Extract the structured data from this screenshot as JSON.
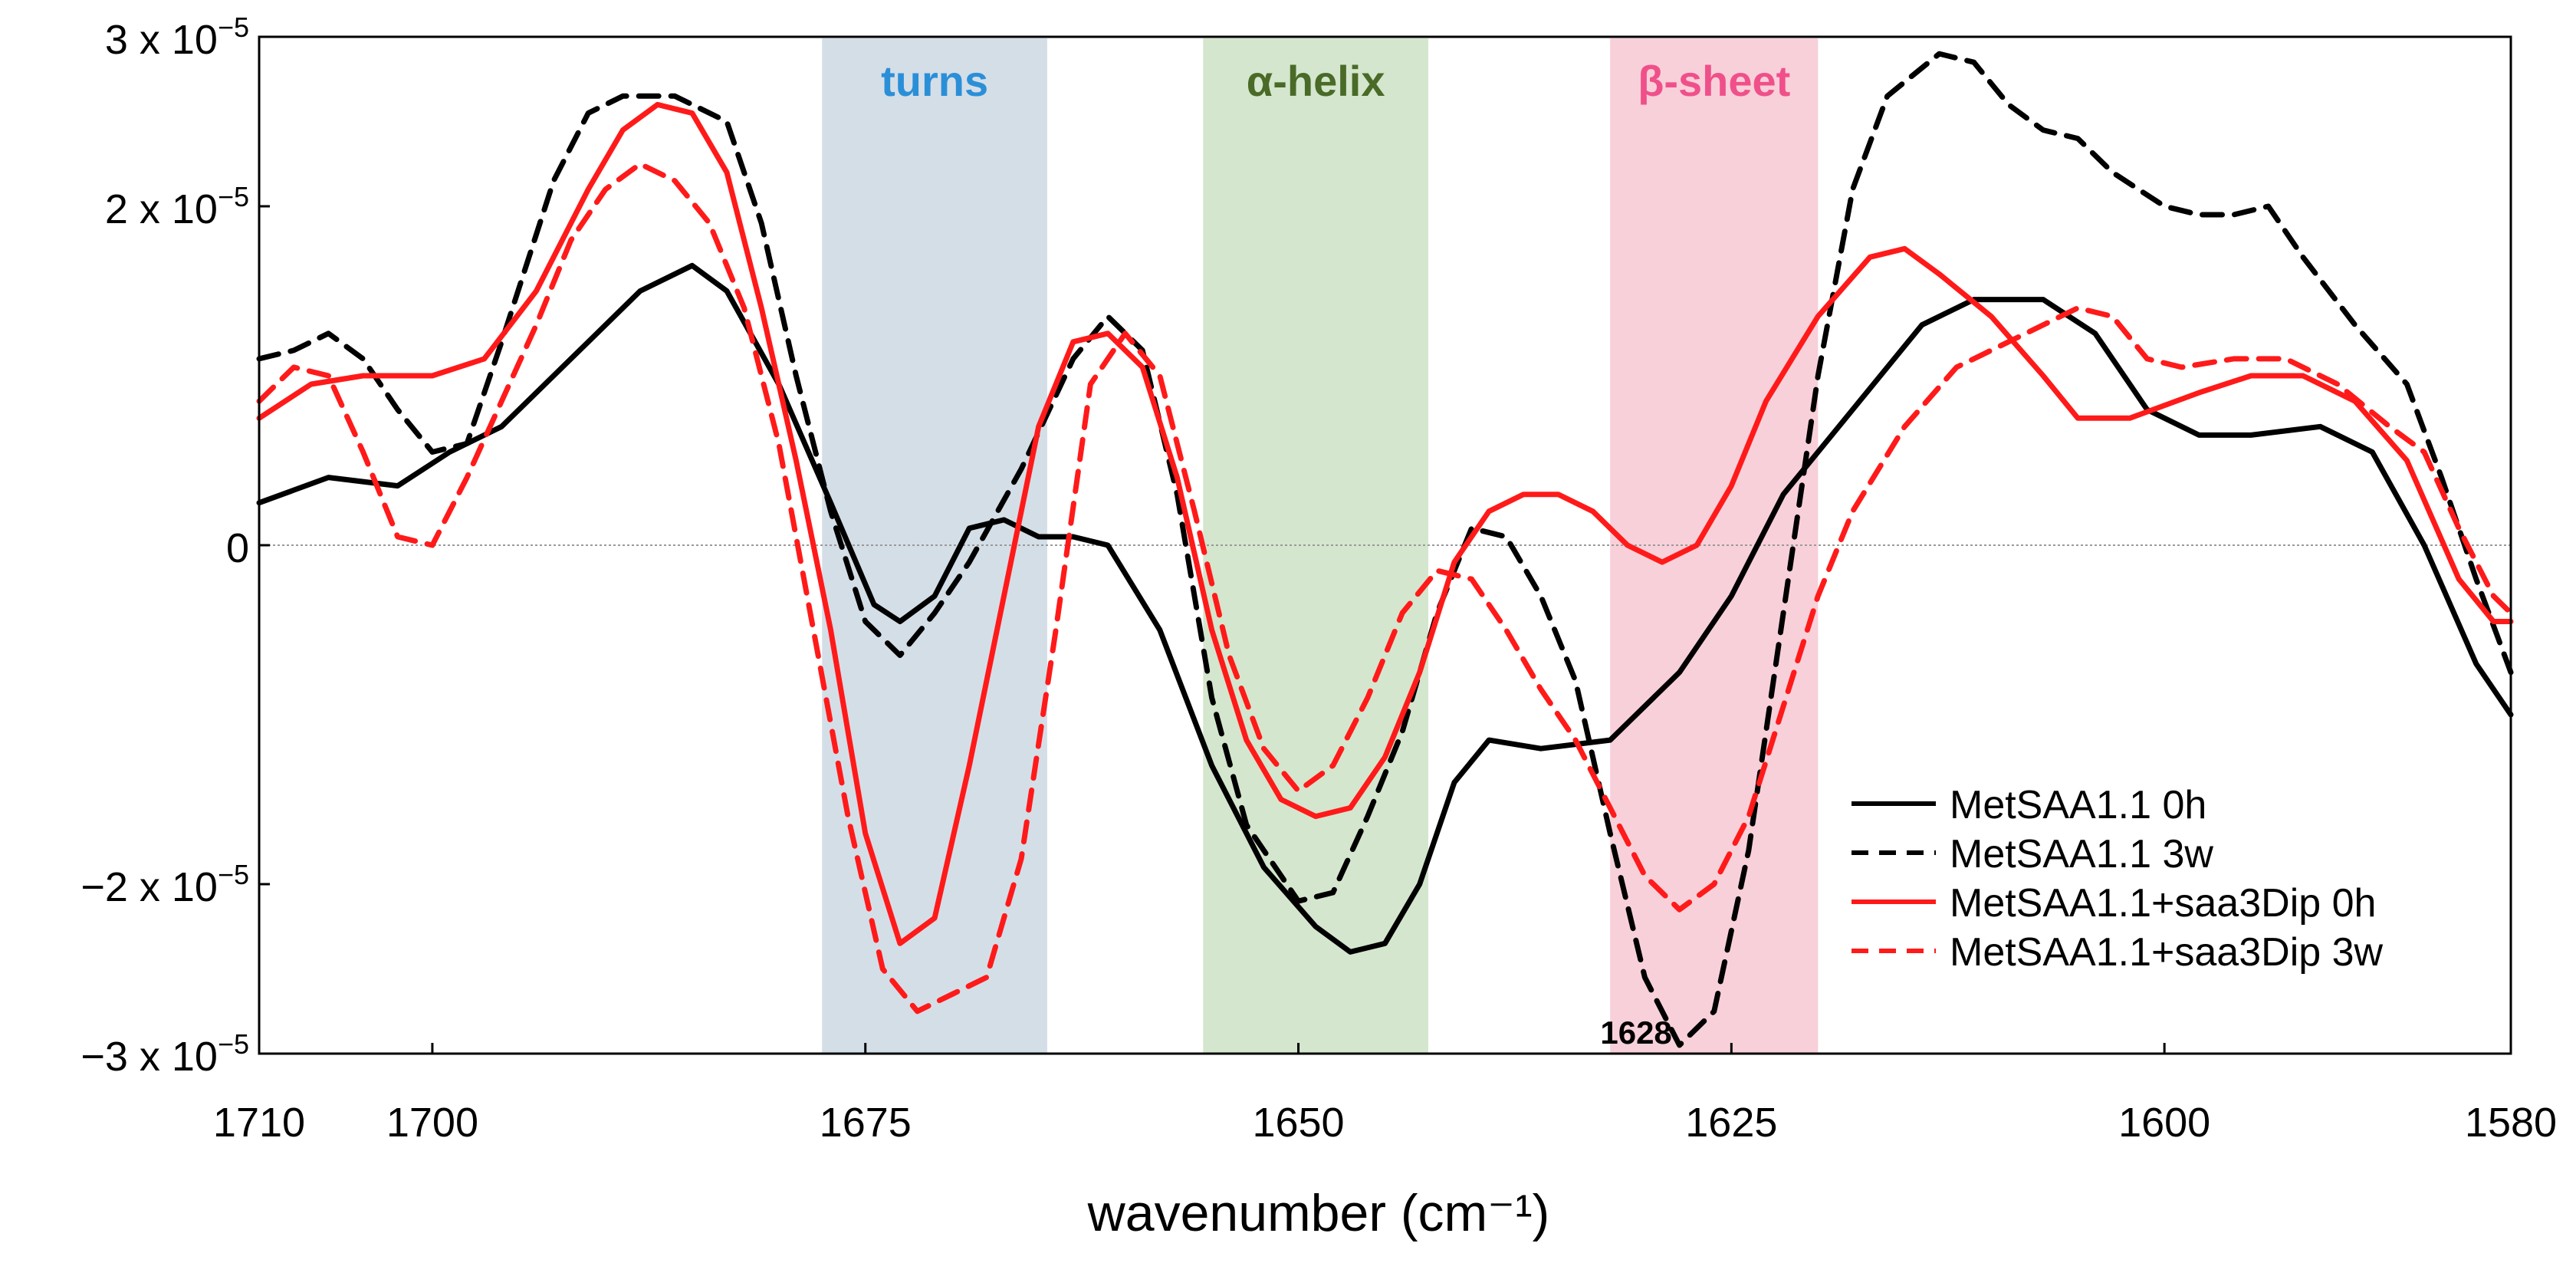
{
  "chart_data": {
    "type": "line",
    "xlabel": "wavenumber (cm⁻¹)",
    "ylabel": "",
    "xlim": [
      1710,
      1580
    ],
    "xaxis_reversed": true,
    "ylim": [
      -3e-05,
      3e-05
    ],
    "x_ticks": [
      1710,
      1700,
      1675,
      1650,
      1625,
      1600,
      1580
    ],
    "x_tick_labels": [
      "1710",
      "1700",
      "1675",
      "1650",
      "1625",
      "1600",
      "1580"
    ],
    "y_ticks": [
      3e-05,
      2e-05,
      0,
      -2e-05,
      -3e-05
    ],
    "y_tick_labels": [
      {
        "mant": "3 x 10",
        "exp": "−5"
      },
      {
        "mant": "2 x 10",
        "exp": "−5"
      },
      {
        "mant": "0",
        "exp": ""
      },
      {
        "mant": "−2 x 10",
        "exp": "−5"
      },
      {
        "mant": "−3 x 10",
        "exp": "−5"
      }
    ],
    "grid": false,
    "zero_line": true,
    "legend_position": "bottom-right",
    "bands": [
      {
        "label": "turns",
        "from": 1677.5,
        "to": 1664.5,
        "fill": "#d4dee7",
        "label_color": "#2b8fd8"
      },
      {
        "label": "α-helix",
        "from": 1655.5,
        "to": 1642.5,
        "fill": "#d4e6cd",
        "label_color": "#4a6a28"
      },
      {
        "label": "β-sheet",
        "from": 1632.0,
        "to": 1620.0,
        "fill": "#f8d0da",
        "label_color": "#f0508a"
      }
    ],
    "annotations": [
      {
        "text": "1628",
        "x": 1630.5,
        "y": -2.85e-05
      }
    ],
    "series": [
      {
        "name": "MetSAA1.1 0h",
        "color": "#000000",
        "dash": "solid",
        "points": [
          [
            1710,
            2.5e-06
          ],
          [
            1706,
            4e-06
          ],
          [
            1702,
            3.5e-06
          ],
          [
            1699,
            5.5e-06
          ],
          [
            1696,
            7e-06
          ],
          [
            1692,
            1.1e-05
          ],
          [
            1688,
            1.5e-05
          ],
          [
            1685,
            1.65e-05
          ],
          [
            1683,
            1.5e-05
          ],
          [
            1680,
            9.5e-06
          ],
          [
            1677,
            2.5e-06
          ],
          [
            1674.5,
            -3.5e-06
          ],
          [
            1673,
            -4.5e-06
          ],
          [
            1671,
            -3e-06
          ],
          [
            1669,
            1e-06
          ],
          [
            1667,
            1.5e-06
          ],
          [
            1665,
            5e-07
          ],
          [
            1663,
            5e-07
          ],
          [
            1661,
            0.0
          ],
          [
            1658,
            -5e-06
          ],
          [
            1655,
            -1.3e-05
          ],
          [
            1652,
            -1.9e-05
          ],
          [
            1649,
            -2.25e-05
          ],
          [
            1647,
            -2.4e-05
          ],
          [
            1645,
            -2.35e-05
          ],
          [
            1643,
            -2e-05
          ],
          [
            1641,
            -1.4e-05
          ],
          [
            1639,
            -1.15e-05
          ],
          [
            1636,
            -1.2e-05
          ],
          [
            1632,
            -1.15e-05
          ],
          [
            1628,
            -7.5e-06
          ],
          [
            1625,
            -3e-06
          ],
          [
            1622,
            3e-06
          ],
          [
            1618,
            8e-06
          ],
          [
            1614,
            1.3e-05
          ],
          [
            1611,
            1.45e-05
          ],
          [
            1607,
            1.45e-05
          ],
          [
            1604,
            1.25e-05
          ],
          [
            1601,
            8e-06
          ],
          [
            1598,
            6.5e-06
          ],
          [
            1595,
            6.5e-06
          ],
          [
            1591,
            7e-06
          ],
          [
            1588,
            5.5e-06
          ],
          [
            1585,
            0.0
          ],
          [
            1582,
            -7e-06
          ],
          [
            1580,
            -1e-05
          ]
        ]
      },
      {
        "name": "MetSAA1.1 3w",
        "color": "#000000",
        "dash": "dashed",
        "points": [
          [
            1710,
            1.1e-05
          ],
          [
            1708,
            1.15e-05
          ],
          [
            1706,
            1.25e-05
          ],
          [
            1704,
            1.1e-05
          ],
          [
            1702,
            8e-06
          ],
          [
            1700,
            5.5e-06
          ],
          [
            1698,
            6e-06
          ],
          [
            1696,
            1.2e-05
          ],
          [
            1693,
            2.15e-05
          ],
          [
            1691,
            2.55e-05
          ],
          [
            1689,
            2.65e-05
          ],
          [
            1686,
            2.65e-05
          ],
          [
            1683,
            2.5e-05
          ],
          [
            1681,
            1.9e-05
          ],
          [
            1679,
            1e-05
          ],
          [
            1677,
            2e-06
          ],
          [
            1675,
            -4.5e-06
          ],
          [
            1673,
            -6.5e-06
          ],
          [
            1671,
            -4e-06
          ],
          [
            1669,
            -1e-06
          ],
          [
            1666,
            4.5e-06
          ],
          [
            1663,
            1.1e-05
          ],
          [
            1661,
            1.35e-05
          ],
          [
            1659,
            1.15e-05
          ],
          [
            1657,
            3e-06
          ],
          [
            1655,
            -9e-06
          ],
          [
            1653,
            -1.65e-05
          ],
          [
            1650,
            -2.1e-05
          ],
          [
            1648,
            -2.05e-05
          ],
          [
            1646,
            -1.6e-05
          ],
          [
            1644,
            -1.1e-05
          ],
          [
            1642,
            -4e-06
          ],
          [
            1640,
            1e-06
          ],
          [
            1638,
            5e-07
          ],
          [
            1636,
            -3e-06
          ],
          [
            1634,
            -8e-06
          ],
          [
            1632,
            -1.7e-05
          ],
          [
            1630,
            -2.55e-05
          ],
          [
            1628,
            -2.95e-05
          ],
          [
            1626,
            -2.75e-05
          ],
          [
            1624,
            -1.8e-05
          ],
          [
            1622,
            -4e-06
          ],
          [
            1620,
            1e-05
          ],
          [
            1618,
            2.1e-05
          ],
          [
            1616,
            2.65e-05
          ],
          [
            1613,
            2.9e-05
          ],
          [
            1611,
            2.85e-05
          ],
          [
            1609,
            2.6e-05
          ],
          [
            1607,
            2.45e-05
          ],
          [
            1605,
            2.4e-05
          ],
          [
            1603,
            2.2e-05
          ],
          [
            1600,
            2e-05
          ],
          [
            1598,
            1.95e-05
          ],
          [
            1596,
            1.95e-05
          ],
          [
            1594,
            2e-05
          ],
          [
            1592,
            1.7e-05
          ],
          [
            1589,
            1.3e-05
          ],
          [
            1586,
            9.5e-06
          ],
          [
            1584,
            4e-06
          ],
          [
            1582,
            -2e-06
          ],
          [
            1580,
            -7.5e-06
          ]
        ]
      },
      {
        "name": "MetSAA1.1+saa3Dip 0h",
        "color": "#ff1a1a",
        "dash": "solid",
        "points": [
          [
            1710,
            7.5e-06
          ],
          [
            1707,
            9.5e-06
          ],
          [
            1704,
            1e-05
          ],
          [
            1700,
            1e-05
          ],
          [
            1697,
            1.1e-05
          ],
          [
            1694,
            1.5e-05
          ],
          [
            1691,
            2.1e-05
          ],
          [
            1689,
            2.45e-05
          ],
          [
            1687,
            2.6e-05
          ],
          [
            1685,
            2.55e-05
          ],
          [
            1683,
            2.2e-05
          ],
          [
            1681,
            1.4e-05
          ],
          [
            1679,
            5e-06
          ],
          [
            1677,
            -5e-06
          ],
          [
            1675,
            -1.7e-05
          ],
          [
            1673,
            -2.35e-05
          ],
          [
            1671,
            -2.2e-05
          ],
          [
            1669,
            -1.3e-05
          ],
          [
            1667,
            -3e-06
          ],
          [
            1665,
            7e-06
          ],
          [
            1663,
            1.2e-05
          ],
          [
            1661,
            1.25e-05
          ],
          [
            1659,
            1.05e-05
          ],
          [
            1657,
            4e-06
          ],
          [
            1655,
            -5e-06
          ],
          [
            1653,
            -1.15e-05
          ],
          [
            1651,
            -1.5e-05
          ],
          [
            1649,
            -1.6e-05
          ],
          [
            1647,
            -1.55e-05
          ],
          [
            1645,
            -1.25e-05
          ],
          [
            1643,
            -7.5e-06
          ],
          [
            1641,
            -1e-06
          ],
          [
            1639,
            2e-06
          ],
          [
            1637,
            3e-06
          ],
          [
            1635,
            3e-06
          ],
          [
            1633,
            2e-06
          ],
          [
            1631,
            0.0
          ],
          [
            1629,
            -1e-06
          ],
          [
            1627,
            0.0
          ],
          [
            1625,
            3.5e-06
          ],
          [
            1623,
            8.5e-06
          ],
          [
            1620,
            1.35e-05
          ],
          [
            1617,
            1.7e-05
          ],
          [
            1615,
            1.75e-05
          ],
          [
            1613,
            1.6e-05
          ],
          [
            1610,
            1.35e-05
          ],
          [
            1607,
            1e-05
          ],
          [
            1605,
            7.5e-06
          ],
          [
            1602,
            7.5e-06
          ],
          [
            1598,
            9e-06
          ],
          [
            1595,
            1e-05
          ],
          [
            1592,
            1e-05
          ],
          [
            1589,
            8.5e-06
          ],
          [
            1586,
            5e-06
          ],
          [
            1583,
            -2e-06
          ],
          [
            1581,
            -4.5e-06
          ],
          [
            1580,
            -4.5e-06
          ]
        ]
      },
      {
        "name": "MetSAA1.1+saa3Dip 3w",
        "color": "#ff1a1a",
        "dash": "dashed",
        "points": [
          [
            1710,
            8.5e-06
          ],
          [
            1708,
            1.05e-05
          ],
          [
            1706,
            1e-05
          ],
          [
            1704,
            5.5e-06
          ],
          [
            1702,
            5e-07
          ],
          [
            1700,
            0.0
          ],
          [
            1698,
            4e-06
          ],
          [
            1696,
            8.5e-06
          ],
          [
            1694,
            1.3e-05
          ],
          [
            1692,
            1.8e-05
          ],
          [
            1690,
            2.1e-05
          ],
          [
            1688,
            2.25e-05
          ],
          [
            1686,
            2.15e-05
          ],
          [
            1684,
            1.9e-05
          ],
          [
            1682,
            1.4e-05
          ],
          [
            1680,
            6e-06
          ],
          [
            1678,
            -5e-06
          ],
          [
            1676,
            -1.6e-05
          ],
          [
            1674,
            -2.5e-05
          ],
          [
            1672,
            -2.75e-05
          ],
          [
            1670,
            -2.65e-05
          ],
          [
            1668,
            -2.55e-05
          ],
          [
            1666,
            -1.85e-05
          ],
          [
            1664,
            -5e-06
          ],
          [
            1662,
            9.5e-06
          ],
          [
            1660,
            1.25e-05
          ],
          [
            1658,
            1e-05
          ],
          [
            1656,
            2e-06
          ],
          [
            1654,
            -6.5e-06
          ],
          [
            1652,
            -1.2e-05
          ],
          [
            1650,
            -1.45e-05
          ],
          [
            1648,
            -1.3e-05
          ],
          [
            1646,
            -9e-06
          ],
          [
            1644,
            -4e-06
          ],
          [
            1642,
            -1.5e-06
          ],
          [
            1640,
            -2e-06
          ],
          [
            1638,
            -5e-06
          ],
          [
            1636,
            -8.5e-06
          ],
          [
            1634,
            -1.15e-05
          ],
          [
            1632,
            -1.55e-05
          ],
          [
            1630,
            -1.95e-05
          ],
          [
            1628,
            -2.15e-05
          ],
          [
            1626,
            -2e-05
          ],
          [
            1624,
            -1.6e-05
          ],
          [
            1622,
            -9.5e-06
          ],
          [
            1620,
            -3e-06
          ],
          [
            1618,
            2e-06
          ],
          [
            1615,
            7e-06
          ],
          [
            1612,
            1.05e-05
          ],
          [
            1608,
            1.25e-05
          ],
          [
            1605,
            1.4e-05
          ],
          [
            1603,
            1.35e-05
          ],
          [
            1601,
            1.1e-05
          ],
          [
            1599,
            1.05e-05
          ],
          [
            1596,
            1.1e-05
          ],
          [
            1593,
            1.1e-05
          ],
          [
            1590,
            9.5e-06
          ],
          [
            1587,
            7e-06
          ],
          [
            1585,
            5.5e-06
          ],
          [
            1583,
            1e-06
          ],
          [
            1581,
            -3e-06
          ],
          [
            1580,
            -4e-06
          ]
        ]
      }
    ]
  }
}
